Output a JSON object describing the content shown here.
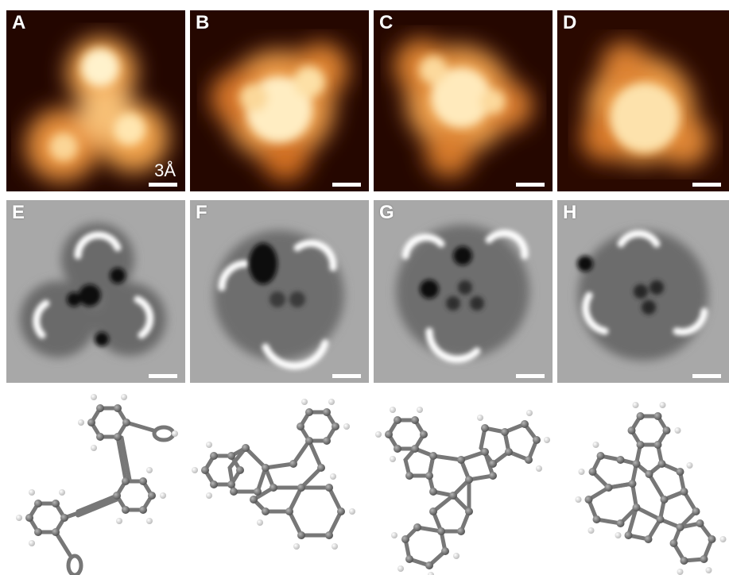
{
  "panels": {
    "a": {
      "label": "A",
      "scale_text": "3Å"
    },
    "b": {
      "label": "B"
    },
    "c": {
      "label": "C"
    },
    "d": {
      "label": "D"
    },
    "e": {
      "label": "E"
    },
    "f": {
      "label": "F"
    },
    "g": {
      "label": "G"
    },
    "h": {
      "label": "H"
    }
  },
  "colors": {
    "stm_dark": "#0b0200",
    "stm_bright": "#fff6dc",
    "afm_background": "#a9a9a9",
    "atom_carbon": "#6e6e6e",
    "atom_hydrogen": "#f2f2f2"
  }
}
